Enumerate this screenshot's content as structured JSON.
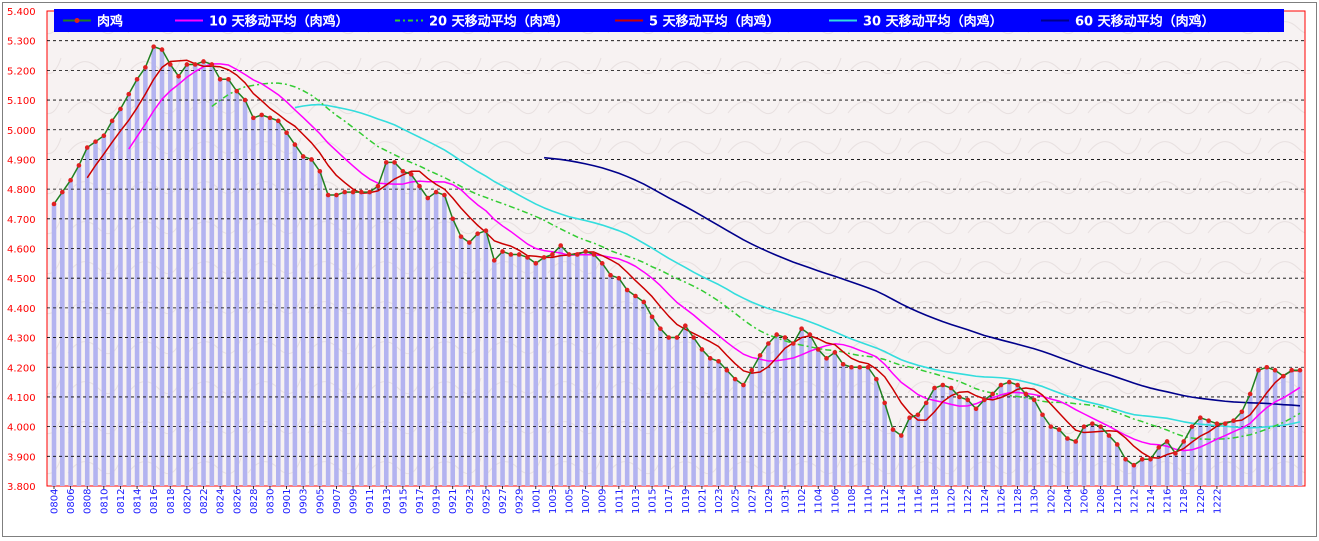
{
  "chart_data": {
    "type": "line",
    "title": "",
    "xlabel": "",
    "ylabel": "",
    "ylim": [
      3.8,
      5.4
    ],
    "y_ticks": [
      "5.400",
      "5.300",
      "5.200",
      "5.100",
      "5.000",
      "4.900",
      "4.800",
      "4.700",
      "4.600",
      "4.500",
      "4.400",
      "4.300",
      "4.200",
      "4.100",
      "4.000",
      "3.900",
      "3.800"
    ],
    "x_tick_labels": [
      "0804",
      "0806",
      "0808",
      "0810",
      "0812",
      "0814",
      "0816",
      "0818",
      "0820",
      "0822",
      "0824",
      "0826",
      "0828",
      "0830",
      "0901",
      "0903",
      "0905",
      "0907",
      "0909",
      "0911",
      "0913",
      "0915",
      "0917",
      "0919",
      "0921",
      "0923",
      "0925",
      "0927",
      "0929",
      "1001",
      "1003",
      "1005",
      "1007",
      "1009",
      "1011",
      "1013",
      "1015",
      "1017",
      "1019",
      "1021",
      "1023",
      "1025",
      "1027",
      "1029",
      "1031",
      "1102",
      "1104",
      "1106",
      "1108",
      "1110",
      "1112",
      "1114",
      "1116",
      "1118",
      "1120",
      "1122",
      "1124",
      "1126",
      "1128",
      "1130",
      "1202",
      "1204",
      "1206",
      "1208",
      "1210",
      "1212",
      "1214",
      "1216",
      "1218",
      "1220",
      "1222"
    ],
    "x_tick_spacing": 2,
    "grid": true,
    "legend_position": "top",
    "colors": {
      "plot_bg": "#f7f2f2",
      "grid": "#000000",
      "legend_bg": "#0000ff",
      "bars": "#b3b3f0",
      "price": "#208020",
      "price_marker": "#e02020",
      "ma10": "#ff00ff",
      "ma20": "#33cc33",
      "ma5": "#cc0000",
      "ma30": "#33dddd",
      "ma60": "#00008b"
    },
    "series": [
      {
        "name": "肉鸡",
        "key": "price",
        "values": [
          4.75,
          4.79,
          4.83,
          4.88,
          4.94,
          4.96,
          4.98,
          5.03,
          5.07,
          5.12,
          5.17,
          5.21,
          5.28,
          5.27,
          5.22,
          5.18,
          5.22,
          5.22,
          5.23,
          5.22,
          5.17,
          5.17,
          5.13,
          5.1,
          5.04,
          5.05,
          5.04,
          5.03,
          4.99,
          4.95,
          4.91,
          4.9,
          4.86,
          4.78,
          4.78,
          4.79,
          4.79,
          4.79,
          4.79,
          4.81,
          4.89,
          4.89,
          4.86,
          4.85,
          4.81,
          4.77,
          4.79,
          4.78,
          4.7,
          4.64,
          4.62,
          4.65,
          4.66,
          4.56,
          4.59,
          4.58,
          4.58,
          4.57,
          4.55,
          4.57,
          4.58,
          4.61,
          4.58,
          4.58,
          4.59,
          4.58,
          4.55,
          4.51,
          4.5,
          4.46,
          4.44,
          4.42,
          4.37,
          4.33,
          4.3,
          4.3,
          4.34,
          4.3,
          4.26,
          4.23,
          4.22,
          4.19,
          4.16,
          4.14,
          4.19,
          4.24,
          4.28,
          4.31,
          4.3,
          4.28,
          4.33,
          4.31,
          4.26,
          4.23,
          4.25,
          4.21,
          4.2,
          4.2,
          4.2,
          4.16,
          4.08,
          3.99,
          3.97,
          4.03,
          4.04,
          4.08,
          4.13,
          4.14,
          4.13,
          4.1,
          4.09,
          4.06,
          4.09,
          4.11,
          4.14,
          4.15,
          4.14,
          4.11,
          4.09,
          4.04,
          4.0,
          3.99,
          3.96,
          3.95,
          4.0,
          4.01,
          4.0,
          3.97,
          3.94,
          3.89,
          3.87,
          3.89,
          3.89,
          3.93,
          3.95,
          3.91,
          3.95,
          4.0,
          4.03,
          4.02,
          4.01,
          4.01,
          4.02,
          4.05,
          4.11,
          4.19,
          4.2,
          4.19,
          4.17,
          4.19,
          4.19
        ]
      },
      {
        "name": "10 天移动平均（肉鸡）",
        "key": "ma10",
        "window": 10,
        "values": []
      },
      {
        "name": "20 天移动平均（肉鸡）",
        "key": "ma20",
        "window": 20,
        "values": []
      },
      {
        "name": "5 天移动平均（肉鸡）",
        "key": "ma5",
        "window": 5,
        "values": []
      },
      {
        "name": "30 天移动平均（肉鸡）",
        "key": "ma30",
        "window": 30,
        "values": []
      },
      {
        "name": "60 天移动平均（肉鸡）",
        "key": "ma60",
        "window": 60,
        "values": []
      }
    ],
    "legend": [
      {
        "label": "肉鸡",
        "key": "price"
      },
      {
        "label": "10 天移动平均（肉鸡）",
        "key": "ma10"
      },
      {
        "label": "20 天移动平均（肉鸡）",
        "key": "ma20"
      },
      {
        "label": "5 天移动平均（肉鸡）",
        "key": "ma5"
      },
      {
        "label": "30 天移动平均（肉鸡）",
        "key": "ma30"
      },
      {
        "label": "60 天移动平均（肉鸡）",
        "key": "ma60"
      }
    ]
  }
}
